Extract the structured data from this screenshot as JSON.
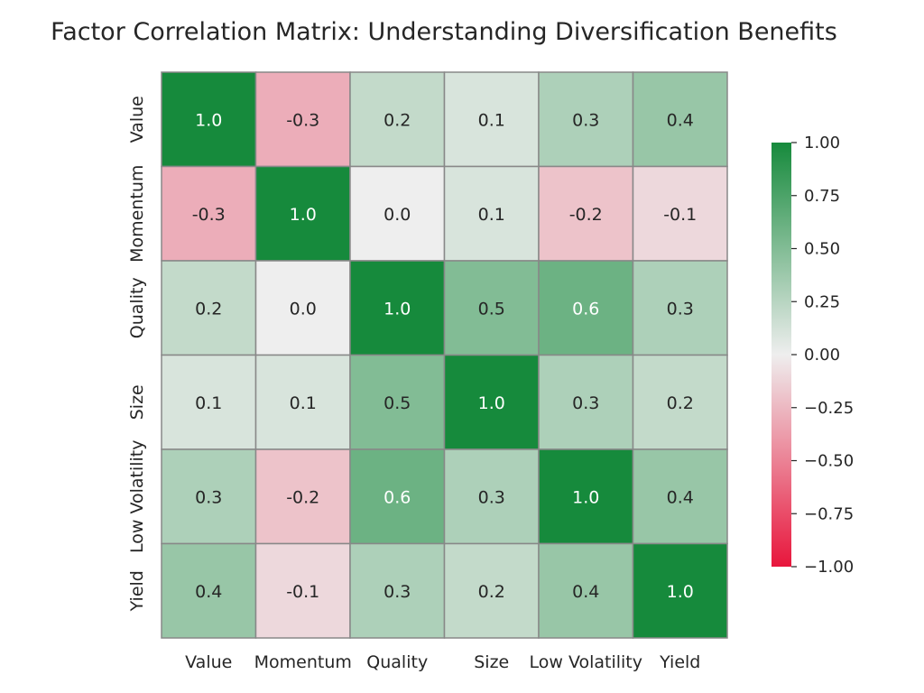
{
  "chart_data": {
    "type": "heatmap",
    "title": "Factor Correlation Matrix: Understanding Diversification Benefits",
    "x_categories": [
      "Value",
      "Momentum",
      "Quality",
      "Size",
      "Low Volatility",
      "Yield"
    ],
    "y_categories": [
      "Value",
      "Momentum",
      "Quality",
      "Size",
      "Low Volatility",
      "Yield"
    ],
    "matrix": [
      [
        1.0,
        -0.3,
        0.2,
        0.1,
        0.3,
        0.4
      ],
      [
        -0.3,
        1.0,
        0.0,
        0.1,
        -0.2,
        -0.1
      ],
      [
        0.2,
        0.0,
        1.0,
        0.5,
        0.6,
        0.3
      ],
      [
        0.1,
        0.1,
        0.5,
        1.0,
        0.3,
        0.2
      ],
      [
        0.3,
        -0.2,
        0.6,
        0.3,
        1.0,
        0.4
      ],
      [
        0.4,
        -0.1,
        0.3,
        0.2,
        0.4,
        1.0
      ]
    ],
    "cell_labels": [
      [
        "1.0",
        "-0.3",
        "0.2",
        "0.1",
        "0.3",
        "0.4"
      ],
      [
        "-0.3",
        "1.0",
        "0.0",
        "0.1",
        "-0.2",
        "-0.1"
      ],
      [
        "0.2",
        "0.0",
        "1.0",
        "0.5",
        "0.6",
        "0.3"
      ],
      [
        "0.1",
        "0.1",
        "0.5",
        "1.0",
        "0.3",
        "0.2"
      ],
      [
        "0.3",
        "-0.2",
        "0.6",
        "0.3",
        "1.0",
        "0.4"
      ],
      [
        "0.4",
        "-0.1",
        "0.3",
        "0.2",
        "0.4",
        "1.0"
      ]
    ],
    "value_range": [
      -1.0,
      1.0
    ],
    "colorbar": {
      "ticks": [
        1.0,
        0.75,
        0.5,
        0.25,
        0.0,
        -0.25,
        -0.5,
        -0.75,
        -1.0
      ],
      "tick_labels": [
        "1.00",
        "0.75",
        "0.50",
        "0.25",
        "0.00",
        "−0.25",
        "−0.50",
        "−0.75",
        "−1.00"
      ]
    },
    "colors": {
      "negative": "#e8163c",
      "center": "#eeeeee",
      "positive": "#168a3c",
      "cell_border": "#888888",
      "text_dark": "#262626",
      "text_light": "#ffffff"
    }
  }
}
